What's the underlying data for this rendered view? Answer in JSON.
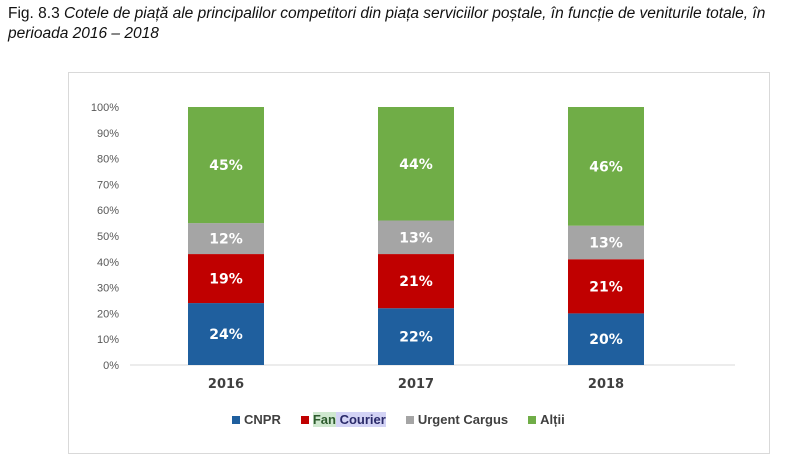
{
  "title": {
    "prefix": "Fig. 8.3",
    "text": "Cotele de piață ale principalilor competitori din piața serviciilor poștale, în funcție de veniturile totale, în perioada 2016 – 2018"
  },
  "chart_data": {
    "type": "bar",
    "stacked": true,
    "categories": [
      "2016",
      "2017",
      "2018"
    ],
    "series": [
      {
        "name": "CNPR",
        "values": [
          24,
          22,
          20
        ],
        "color": "#1f5f9e"
      },
      {
        "name": "Fan Courier",
        "values": [
          19,
          21,
          21
        ],
        "color": "#c00000"
      },
      {
        "name": "Urgent Cargus",
        "values": [
          12,
          13,
          13
        ],
        "color": "#a5a5a5"
      },
      {
        "name": "Alții",
        "values": [
          45,
          44,
          46
        ],
        "color": "#70ad47"
      }
    ],
    "ylim": [
      0,
      100
    ],
    "yticks": [
      "0%",
      "10%",
      "20%",
      "30%",
      "40%",
      "50%",
      "60%",
      "70%",
      "80%",
      "90%",
      "100%"
    ],
    "grid": false,
    "legend": "bottom",
    "legend_labels": {
      "fan": "Fan",
      "courier": "Courier"
    }
  }
}
